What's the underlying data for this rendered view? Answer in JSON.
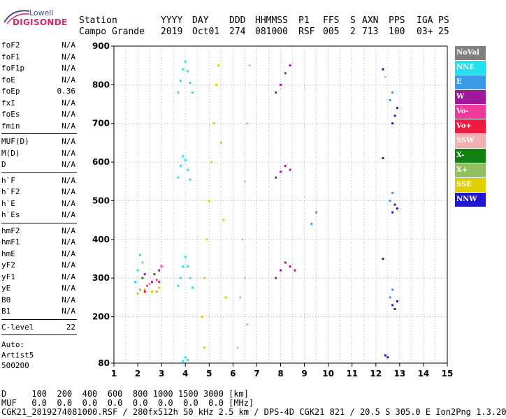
{
  "logo": {
    "line1": "Lowell",
    "line2": "DIGISONDE"
  },
  "header": {
    "labels": [
      "Station",
      "YYYY",
      "DAY",
      "DDD",
      "HHMMSS",
      "P1",
      "FFS",
      "S",
      "AXN",
      "PPS",
      "IGA",
      "PS"
    ],
    "values": [
      "Campo Grande",
      "2019",
      "Oct01",
      "274",
      "081000",
      "RSF",
      "005",
      "2",
      "713",
      "100",
      "03+",
      "25"
    ]
  },
  "params": {
    "group1": [
      {
        "name": "foF2",
        "value": "N/A"
      },
      {
        "name": "foF1",
        "value": "N/A"
      },
      {
        "name": "foF1p",
        "value": "N/A"
      },
      {
        "name": "foE",
        "value": "N/A"
      },
      {
        "name": "foEp",
        "value": "0.36"
      },
      {
        "name": "fxI",
        "value": "N/A"
      },
      {
        "name": "foEs",
        "value": "N/A"
      },
      {
        "name": "fmin",
        "value": "N/A"
      }
    ],
    "group2": [
      {
        "name": "MUF(D)",
        "value": "N/A"
      },
      {
        "name": "M(D)",
        "value": "N/A"
      },
      {
        "name": "D",
        "value": "N/A"
      }
    ],
    "group3": [
      {
        "name": "h`F",
        "value": "N/A"
      },
      {
        "name": "h`F2",
        "value": "N/A"
      },
      {
        "name": "h`E",
        "value": "N/A"
      },
      {
        "name": "h`Es",
        "value": "N/A"
      }
    ],
    "group4": [
      {
        "name": "hmF2",
        "value": "N/A"
      },
      {
        "name": "hmF1",
        "value": "N/A"
      },
      {
        "name": "hmE",
        "value": "N/A"
      },
      {
        "name": "yF2",
        "value": "N/A"
      },
      {
        "name": "yF1",
        "value": "N/A"
      },
      {
        "name": "yE",
        "value": "N/A"
      },
      {
        "name": "B0",
        "value": "N/A"
      },
      {
        "name": "B1",
        "value": "N/A"
      }
    ],
    "clevel": {
      "name": "C-level",
      "value": "22"
    }
  },
  "auto": {
    "line1": "Auto:",
    "line2": "Artist5",
    "line3": "500200"
  },
  "legend": [
    {
      "label": "NoVal",
      "color": "#808080"
    },
    {
      "label": "NNE",
      "color": "#22e0ee"
    },
    {
      "label": "E",
      "color": "#3a9ae8"
    },
    {
      "label": "W",
      "color": "#a0189a"
    },
    {
      "label": "Vo-",
      "color": "#ee3a9a"
    },
    {
      "label": "Vo+",
      "color": "#ee1a40"
    },
    {
      "label": "SSW",
      "color": "#f0b0b0"
    },
    {
      "label": "X-",
      "color": "#108010"
    },
    {
      "label": "X+",
      "color": "#90c060"
    },
    {
      "label": "SSE",
      "color": "#e0d000"
    },
    {
      "label": "NNW",
      "color": "#2018d0"
    }
  ],
  "footer": {
    "line1": "D     100  200  400  600  800 1000 1500 3000 [km]",
    "line2": "MUF   0.0  0.0  0.0  0.0  0.0  0.0  0.0  0.0 [MHz]",
    "line3": "CGK21_2019274081000.RSF / 280fx512h 50 kHz 2.5 km / DPS-4D CGK21 821 / 20.5 S 305.0 E Ion2Png 1.3.20"
  },
  "chart_data": {
    "type": "scatter",
    "title": "",
    "xlabel": "",
    "ylabel": "",
    "x_ticks": [
      1,
      2,
      3,
      4,
      5,
      6,
      7,
      8,
      9,
      10,
      11,
      12,
      13,
      14,
      15
    ],
    "y_ticks": [
      80,
      200,
      300,
      400,
      500,
      600,
      700,
      800,
      900
    ],
    "xlim": [
      1,
      15
    ],
    "ylim": [
      80,
      900
    ],
    "grid": true,
    "legend_placement": "right",
    "series": [
      {
        "name": "NNE",
        "color": "#22e0ee",
        "points": [
          [
            3.7,
            280
          ],
          [
            3.8,
            300
          ],
          [
            3.9,
            330
          ],
          [
            4.0,
            355
          ],
          [
            4.1,
            330
          ],
          [
            4.2,
            300
          ],
          [
            4.3,
            275
          ],
          [
            3.7,
            560
          ],
          [
            3.8,
            590
          ],
          [
            3.9,
            615
          ],
          [
            4.0,
            605
          ],
          [
            4.1,
            580
          ],
          [
            4.2,
            555
          ],
          [
            3.7,
            780
          ],
          [
            3.8,
            810
          ],
          [
            3.9,
            840
          ],
          [
            4.0,
            860
          ],
          [
            4.1,
            835
          ],
          [
            4.2,
            805
          ],
          [
            4.3,
            780
          ],
          [
            1.9,
            290
          ],
          [
            2.0,
            320
          ],
          [
            2.1,
            360
          ],
          [
            2.2,
            340
          ],
          [
            3.9,
            85
          ],
          [
            4.0,
            95
          ],
          [
            4.1,
            88
          ]
        ]
      },
      {
        "name": "SSE",
        "color": "#e0d000",
        "points": [
          [
            4.7,
            200
          ],
          [
            4.8,
            300
          ],
          [
            4.9,
            400
          ],
          [
            5.0,
            500
          ],
          [
            5.1,
            600
          ],
          [
            5.2,
            700
          ],
          [
            5.3,
            800
          ],
          [
            5.4,
            850
          ],
          [
            4.8,
            120
          ],
          [
            5.5,
            650
          ],
          [
            5.6,
            450
          ],
          [
            5.7,
            250
          ],
          [
            2.0,
            260
          ],
          [
            2.3,
            270
          ],
          [
            2.6,
            265
          ],
          [
            2.9,
            275
          ]
        ]
      },
      {
        "name": "SSW",
        "color": "#f0b0b0",
        "points": [
          [
            6.2,
            120
          ],
          [
            6.3,
            250
          ],
          [
            6.4,
            400
          ],
          [
            6.5,
            550
          ],
          [
            6.6,
            700
          ],
          [
            6.7,
            850
          ],
          [
            6.5,
            300
          ],
          [
            6.6,
            180
          ],
          [
            12.3,
            840
          ],
          [
            12.4,
            820
          ]
        ]
      },
      {
        "name": "W",
        "color": "#a0189a",
        "points": [
          [
            7.8,
            300
          ],
          [
            8.0,
            320
          ],
          [
            8.2,
            340
          ],
          [
            8.4,
            330
          ],
          [
            8.6,
            320
          ],
          [
            7.8,
            560
          ],
          [
            8.0,
            575
          ],
          [
            8.2,
            590
          ],
          [
            8.4,
            580
          ],
          [
            7.8,
            780
          ],
          [
            8.0,
            800
          ],
          [
            8.2,
            830
          ],
          [
            8.4,
            850
          ],
          [
            2.3,
            310
          ],
          [
            2.6,
            290
          ],
          [
            2.9,
            320
          ]
        ]
      },
      {
        "name": "E",
        "color": "#3a9ae8",
        "points": [
          [
            12.6,
            250
          ],
          [
            12.7,
            270
          ],
          [
            12.6,
            500
          ],
          [
            12.7,
            520
          ],
          [
            12.6,
            760
          ],
          [
            12.7,
            780
          ],
          [
            9.3,
            440
          ],
          [
            9.5,
            470
          ]
        ]
      },
      {
        "name": "NNW",
        "color": "#2018d0",
        "points": [
          [
            12.3,
            350
          ],
          [
            12.7,
            230
          ],
          [
            12.8,
            220
          ],
          [
            12.9,
            240
          ],
          [
            12.3,
            610
          ],
          [
            12.7,
            470
          ],
          [
            12.8,
            490
          ],
          [
            12.9,
            480
          ],
          [
            12.3,
            840
          ],
          [
            12.7,
            700
          ],
          [
            12.8,
            720
          ],
          [
            12.9,
            740
          ],
          [
            12.4,
            100
          ],
          [
            12.5,
            95
          ]
        ]
      },
      {
        "name": "X+",
        "color": "#90c060",
        "points": [
          [
            2.1,
            270
          ],
          [
            2.5,
            285
          ],
          [
            2.8,
            265
          ]
        ]
      },
      {
        "name": "X-",
        "color": "#108010",
        "points": [
          [
            2.2,
            300
          ],
          [
            2.7,
            310
          ]
        ]
      },
      {
        "name": "Vo-",
        "color": "#ee3a9a",
        "points": [
          [
            2.4,
            280
          ],
          [
            2.8,
            295
          ],
          [
            3.0,
            330
          ]
        ]
      },
      {
        "name": "Vo+",
        "color": "#ee1a40",
        "points": [
          [
            2.3,
            265
          ],
          [
            2.9,
            290
          ]
        ]
      }
    ]
  }
}
